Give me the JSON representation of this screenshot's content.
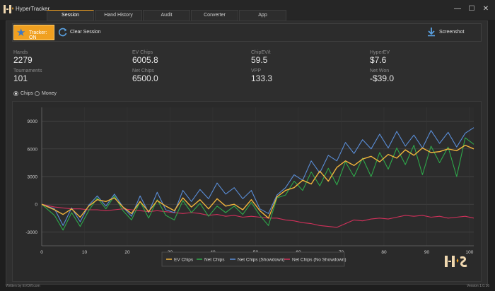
{
  "app": {
    "title": "HyperTracker"
  },
  "window": {
    "minimize": "—",
    "maximize": "☐",
    "close": "✕"
  },
  "tabs": [
    {
      "label": "Session",
      "active": true
    },
    {
      "label": "Hand History",
      "active": false
    },
    {
      "label": "Audit",
      "active": false
    },
    {
      "label": "Converter",
      "active": false
    },
    {
      "label": "App",
      "active": false
    }
  ],
  "toolbar": {
    "tracker_label": "Tracker: ON",
    "clear_label": "Clear Session",
    "screenshot_label": "Screenshot"
  },
  "stats": {
    "hands": {
      "label": "Hands",
      "value": "2279"
    },
    "tournaments": {
      "label": "Tournaments",
      "value": "101"
    },
    "ev_chips": {
      "label": "EV Chips",
      "value": "6005.8"
    },
    "net_chips": {
      "label": "Net Chips",
      "value": "6500.0"
    },
    "chip_ev_t": {
      "label": "ChipEV/t",
      "value": "59.5"
    },
    "vpp": {
      "label": "VPP",
      "value": "133.3"
    },
    "hyper_ev": {
      "label": "HyperEV",
      "value": "$7.6"
    },
    "net_won": {
      "label": "Net Won",
      "value": "-$39.0"
    }
  },
  "mode": {
    "options": [
      "Chips",
      "Money"
    ],
    "selected": "Chips"
  },
  "footer": {
    "left": "Written by EVDiff.com",
    "right": "Version 1.0.16"
  },
  "colors": {
    "accent": "#f0a020",
    "ev_chips": "#f0b43c",
    "net_chips": "#2ea84a",
    "net_showdown": "#5a8ed8",
    "net_no_showdown": "#d0305a"
  },
  "chart_data": {
    "type": "line",
    "xlim": [
      0,
      101
    ],
    "ylim": [
      -4500,
      10500
    ],
    "xticks": [
      0,
      10,
      20,
      30,
      40,
      50,
      60,
      70,
      80,
      90,
      100
    ],
    "yticks": [
      -3000,
      0,
      3000,
      6000,
      9000
    ],
    "grid": true,
    "legend_position": "bottom-center",
    "series": [
      {
        "name": "EV Chips",
        "x": [
          0,
          3,
          5,
          7,
          9,
          11,
          13,
          15,
          17,
          19,
          21,
          23,
          25,
          27,
          29,
          31,
          33,
          35,
          37,
          39,
          41,
          43,
          45,
          47,
          49,
          51,
          53,
          55,
          57,
          59,
          61,
          63,
          65,
          67,
          69,
          71,
          73,
          75,
          77,
          79,
          81,
          83,
          85,
          87,
          89,
          91,
          93,
          95,
          97,
          99,
          101
        ],
        "y": [
          0,
          -600,
          -1100,
          -500,
          -1400,
          -200,
          500,
          300,
          700,
          -300,
          -1000,
          300,
          -800,
          400,
          -200,
          -700,
          700,
          -300,
          500,
          -500,
          600,
          -200,
          0,
          -600,
          500,
          -700,
          -1500,
          800,
          1500,
          1800,
          2600,
          2200,
          3600,
          2500,
          4000,
          4700,
          4200,
          4900,
          5200,
          4600,
          5400,
          5000,
          5900,
          5300,
          6100,
          5600,
          5700,
          6000,
          5800,
          6400,
          6000
        ]
      },
      {
        "name": "Net Chips",
        "x": [
          0,
          3,
          5,
          7,
          9,
          11,
          13,
          15,
          17,
          19,
          21,
          23,
          25,
          27,
          29,
          31,
          33,
          35,
          37,
          39,
          41,
          43,
          45,
          47,
          49,
          51,
          53,
          55,
          57,
          59,
          61,
          63,
          65,
          67,
          69,
          71,
          73,
          75,
          77,
          79,
          81,
          83,
          85,
          87,
          89,
          91,
          93,
          95,
          97,
          99,
          101
        ],
        "y": [
          0,
          -1200,
          -2800,
          -900,
          -2400,
          -700,
          700,
          -500,
          900,
          -700,
          -1700,
          300,
          -1500,
          500,
          -1200,
          -1700,
          400,
          -900,
          100,
          -1300,
          -200,
          -900,
          -200,
          -1100,
          200,
          -1200,
          -2300,
          700,
          1000,
          2500,
          1500,
          3500,
          2000,
          3900,
          2100,
          4600,
          3000,
          5000,
          3000,
          5600,
          3800,
          6100,
          4300,
          6400,
          3200,
          6300,
          4500,
          6200,
          3000,
          7200,
          6500
        ]
      },
      {
        "name": "Net Chips (Showdown)",
        "x": [
          0,
          3,
          5,
          7,
          9,
          11,
          13,
          15,
          17,
          19,
          21,
          23,
          25,
          27,
          29,
          31,
          33,
          35,
          37,
          39,
          41,
          43,
          45,
          47,
          49,
          51,
          53,
          55,
          57,
          59,
          61,
          63,
          65,
          67,
          69,
          71,
          73,
          75,
          77,
          79,
          81,
          83,
          85,
          87,
          89,
          91,
          93,
          95,
          97,
          99,
          101
        ],
        "y": [
          0,
          -500,
          -2300,
          -400,
          -1900,
          -100,
          900,
          -200,
          1100,
          -300,
          -1300,
          900,
          -900,
          1300,
          -600,
          -900,
          1500,
          300,
          1600,
          600,
          2300,
          1100,
          1800,
          600,
          1500,
          -500,
          -1000,
          1000,
          1800,
          3200,
          2600,
          4700,
          3400,
          5300,
          4700,
          6700,
          5500,
          7000,
          6000,
          7600,
          6100,
          7900,
          6300,
          7500,
          6100,
          8000,
          6600,
          7800,
          6200,
          7700,
          8300
        ]
      },
      {
        "name": "Net Chips (No Showdown)",
        "x": [
          0,
          3,
          5,
          7,
          9,
          11,
          13,
          15,
          17,
          19,
          21,
          23,
          25,
          27,
          29,
          31,
          33,
          35,
          37,
          39,
          41,
          43,
          45,
          47,
          49,
          51,
          53,
          55,
          57,
          59,
          61,
          63,
          65,
          67,
          69,
          71,
          73,
          75,
          77,
          79,
          81,
          83,
          85,
          87,
          89,
          91,
          93,
          95,
          97,
          99,
          101
        ],
        "y": [
          0,
          -300,
          -400,
          -500,
          -500,
          -600,
          -600,
          -700,
          -600,
          -500,
          -600,
          -700,
          -800,
          -700,
          -800,
          -900,
          -1000,
          -900,
          -1000,
          -1200,
          -1100,
          -1300,
          -1200,
          -1400,
          -1300,
          -1400,
          -1500,
          -1500,
          -1700,
          -1800,
          -2000,
          -2100,
          -2300,
          -2400,
          -2500,
          -2100,
          -1700,
          -1800,
          -1600,
          -1500,
          -1600,
          -1400,
          -1200,
          -1300,
          -1200,
          -1400,
          -1300,
          -1500,
          -1400,
          -1300,
          -1500
        ]
      }
    ]
  }
}
